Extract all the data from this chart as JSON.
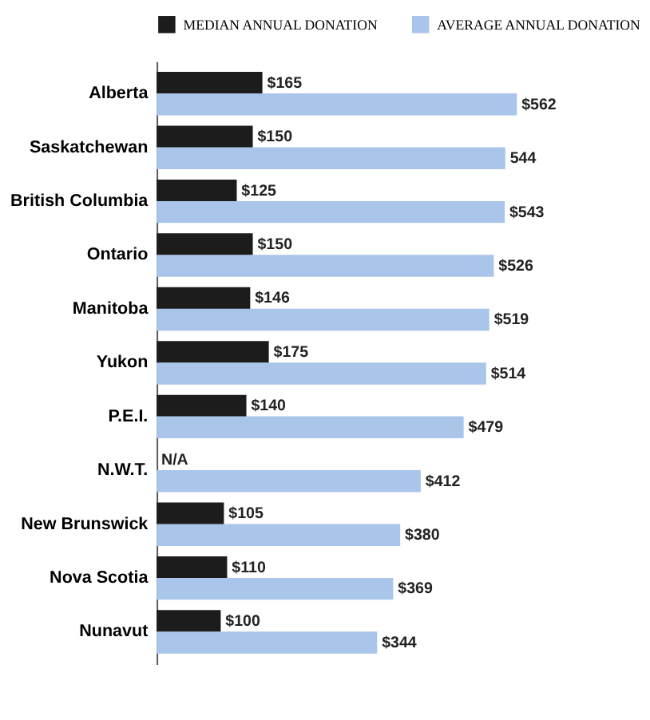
{
  "chart_data": {
    "type": "bar",
    "orientation": "horizontal",
    "categories": [
      "Alberta",
      "Saskatchewan",
      "British Columbia",
      "Ontario",
      "Manitoba",
      "Yukon",
      "P.E.I.",
      "N.W.T.",
      "New Brunswick",
      "Nova Scotia",
      "Nunavut"
    ],
    "series": [
      {
        "name": "MEDIAN ANNUAL DONATION",
        "color": "#1c1c1c",
        "values": [
          165,
          150,
          125,
          150,
          146,
          175,
          140,
          null,
          105,
          110,
          100
        ],
        "value_labels": [
          "$165",
          "$150",
          "$125",
          "$150",
          "$146",
          "$175",
          "$140",
          "N/A",
          "$105",
          "$110",
          "$100"
        ]
      },
      {
        "name": "AVERAGE ANNUAL DONATION",
        "color": "#a9c5ea",
        "values": [
          562,
          544,
          543,
          526,
          519,
          514,
          479,
          412,
          380,
          369,
          344
        ],
        "value_labels": [
          "$562",
          "544",
          "$543",
          "$526",
          "$519",
          "$514",
          "$479",
          "$412",
          "$380",
          "$369",
          "$344"
        ]
      }
    ],
    "legend": "top",
    "tick_labels": "y"
  }
}
